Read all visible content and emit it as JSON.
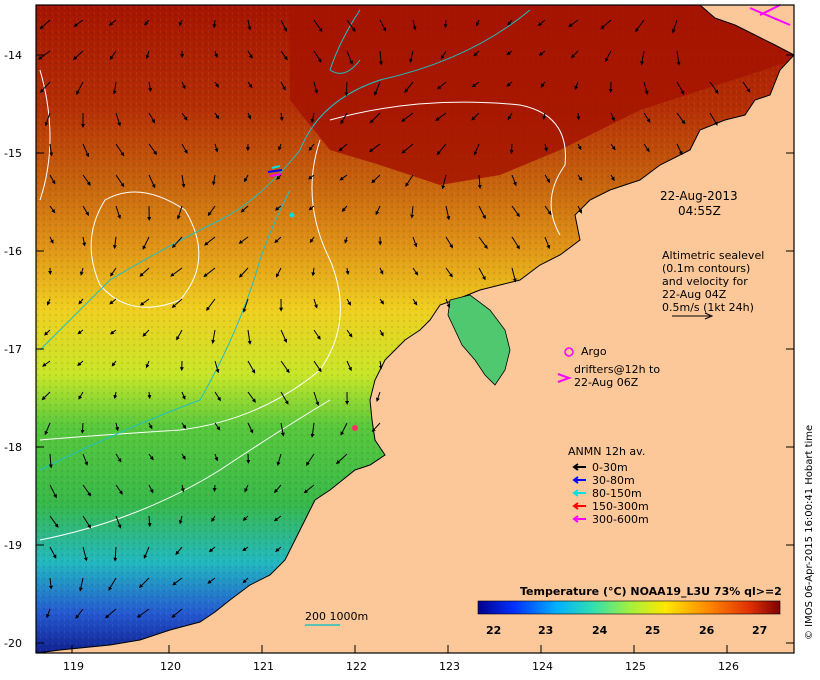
{
  "map": {
    "timestamp_date": "22-Aug-2013",
    "timestamp_time": "04:55Z",
    "credit": "© IMOS 06-Apr-2015 16:00:41 Hobart time",
    "lat_ticks": [
      "-14",
      "-15",
      "-16",
      "-17",
      "-18",
      "-19",
      "-20"
    ],
    "lon_ticks": [
      "119",
      "120",
      "121",
      "122",
      "123",
      "124",
      "125",
      "126"
    ],
    "altimetry": {
      "line1": "Altimetric sealevel",
      "line2": "(0.1m contours)",
      "line3": "and velocity for",
      "line4": "22-Aug 04Z",
      "line5": "0.5m/s (1kt 24h)"
    },
    "argo_label": "Argo",
    "drifters_line1": "drifters@12h to",
    "drifters_line2": "22-Aug 06Z",
    "anmn": {
      "title": "ANMN 12h av.",
      "items": [
        {
          "label": "0-30m",
          "color": "#000000"
        },
        {
          "label": "30-80m",
          "color": "#0000ff"
        },
        {
          "label": "80-150m",
          "color": "#00e0e0"
        },
        {
          "label": "150-300m",
          "color": "#ff0000"
        },
        {
          "label": "300-600m",
          "color": "#ff00ff"
        }
      ]
    },
    "bathy_label": "200  1000m",
    "colorbar": {
      "title": "Temperature (°C) NOAA19_L3U 73% ql>=2",
      "ticks": [
        "22",
        "23",
        "24",
        "25",
        "26",
        "27"
      ]
    },
    "colors": {
      "land": "#fcc89a",
      "hot": "#a01000",
      "orange": "#d87a10",
      "yellow": "#f0e020",
      "green": "#40c040",
      "cyan": "#20c0c0",
      "blue": "#2040d0"
    }
  }
}
